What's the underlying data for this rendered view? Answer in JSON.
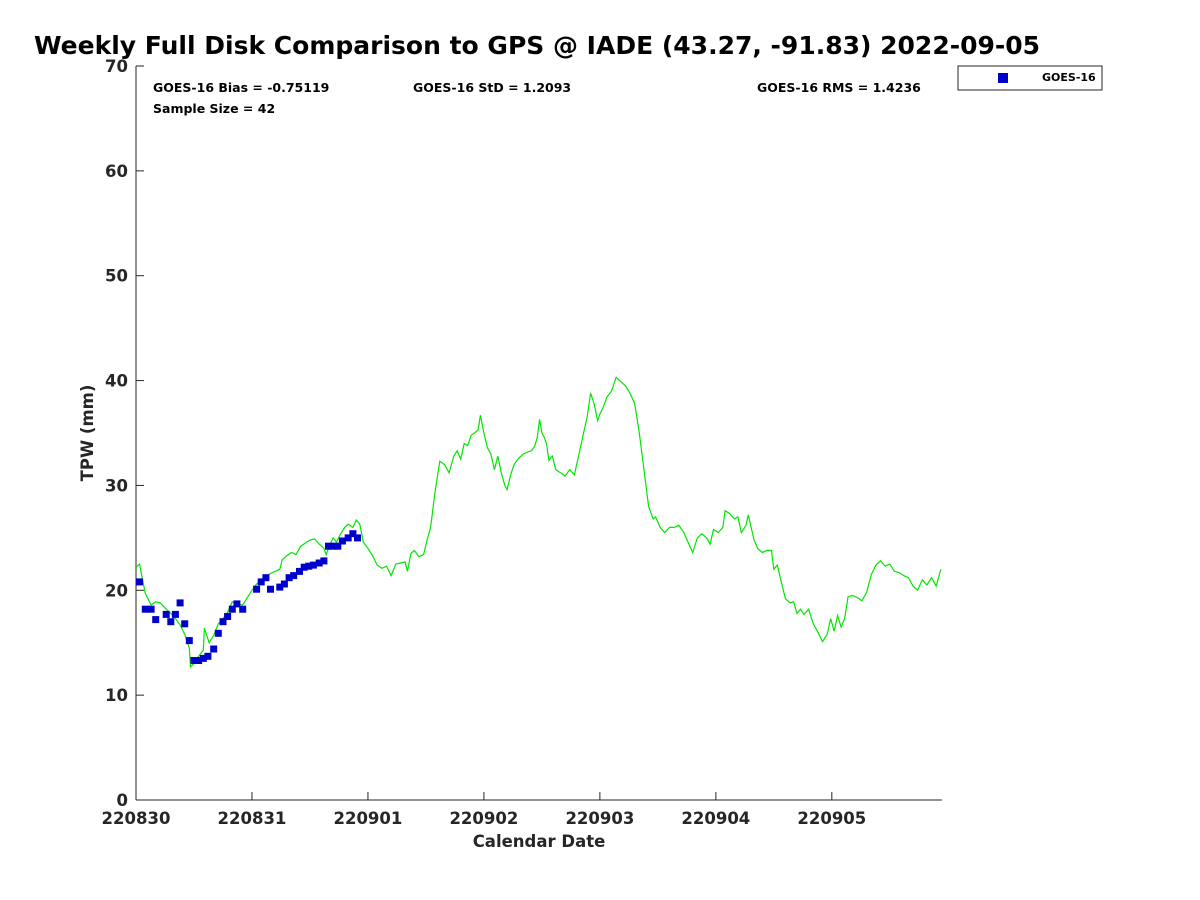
{
  "chart_data": {
    "type": "scatter",
    "title": "Weekly Full Disk Comparison to GPS @ IADE (43.27, -91.83) 2022-09-05",
    "xlabel": "Calendar Date",
    "ylabel": "TPW (mm)",
    "xlim": [
      0,
      6.95
    ],
    "ylim": [
      0,
      70
    ],
    "x_unit": "days since 220830 00Z",
    "x_ticks": [
      {
        "value": 0,
        "label": "220830"
      },
      {
        "value": 1,
        "label": "220831"
      },
      {
        "value": 2,
        "label": "220901"
      },
      {
        "value": 3,
        "label": "220902"
      },
      {
        "value": 4,
        "label": "220903"
      },
      {
        "value": 5,
        "label": "220904"
      },
      {
        "value": 6,
        "label": "220905"
      }
    ],
    "y_ticks": [
      0,
      10,
      20,
      30,
      40,
      50,
      60,
      70
    ],
    "stats": {
      "bias": "GOES-16 Bias = -0.75119",
      "std": "GOES-16 StD = 1.2093",
      "rms": "GOES-16 RMS = 1.4236",
      "sample": "Sample Size = 42"
    },
    "legend": {
      "position": "top-right-outside",
      "entries": [
        "GOES-16"
      ]
    },
    "grid": false,
    "colors": {
      "goes": "#0000cc",
      "gps": "#00e600"
    },
    "series": [
      {
        "name": "GOES-16",
        "marker": "square",
        "points": [
          [
            0.03,
            20.8
          ],
          [
            0.08,
            18.2
          ],
          [
            0.13,
            18.2
          ],
          [
            0.17,
            17.2
          ],
          [
            0.26,
            17.7
          ],
          [
            0.3,
            17.0
          ],
          [
            0.34,
            17.7
          ],
          [
            0.38,
            18.8
          ],
          [
            0.42,
            16.8
          ],
          [
            0.46,
            15.2
          ],
          [
            0.5,
            13.3
          ],
          [
            0.54,
            13.3
          ],
          [
            0.58,
            13.5
          ],
          [
            0.62,
            13.7
          ],
          [
            0.67,
            14.4
          ],
          [
            0.71,
            15.9
          ],
          [
            0.75,
            17.0
          ],
          [
            0.79,
            17.5
          ],
          [
            0.83,
            18.2
          ],
          [
            0.87,
            18.7
          ],
          [
            0.92,
            18.2
          ],
          [
            1.04,
            20.1
          ],
          [
            1.08,
            20.8
          ],
          [
            1.12,
            21.2
          ],
          [
            1.16,
            20.1
          ],
          [
            1.24,
            20.3
          ],
          [
            1.28,
            20.6
          ],
          [
            1.32,
            21.2
          ],
          [
            1.36,
            21.4
          ],
          [
            1.41,
            21.8
          ],
          [
            1.45,
            22.2
          ],
          [
            1.49,
            22.3
          ],
          [
            1.53,
            22.4
          ],
          [
            1.58,
            22.6
          ],
          [
            1.62,
            22.8
          ],
          [
            1.66,
            24.2
          ],
          [
            1.7,
            24.2
          ],
          [
            1.74,
            24.2
          ],
          [
            1.78,
            24.7
          ],
          [
            1.83,
            25.0
          ],
          [
            1.87,
            25.4
          ],
          [
            1.91,
            25.0
          ]
        ]
      },
      {
        "name": "GPS",
        "style": "line",
        "points": [
          [
            0.0,
            22.2
          ],
          [
            0.03,
            22.5
          ],
          [
            0.08,
            19.7
          ],
          [
            0.13,
            18.6
          ],
          [
            0.17,
            18.9
          ],
          [
            0.21,
            18.8
          ],
          [
            0.26,
            18.2
          ],
          [
            0.3,
            17.8
          ],
          [
            0.34,
            17.3
          ],
          [
            0.38,
            16.7
          ],
          [
            0.42,
            15.8
          ],
          [
            0.46,
            14.5
          ],
          [
            0.47,
            12.7
          ],
          [
            0.5,
            13.0
          ],
          [
            0.54,
            13.7
          ],
          [
            0.58,
            14.3
          ],
          [
            0.59,
            16.4
          ],
          [
            0.63,
            15.0
          ],
          [
            0.67,
            15.7
          ],
          [
            0.71,
            16.8
          ],
          [
            0.75,
            17.3
          ],
          [
            0.79,
            17.9
          ],
          [
            0.83,
            18.9
          ],
          [
            0.87,
            18.7
          ],
          [
            0.92,
            18.6
          ],
          [
            0.96,
            19.3
          ],
          [
            1.0,
            20.0
          ],
          [
            1.04,
            20.6
          ],
          [
            1.08,
            20.9
          ],
          [
            1.12,
            21.3
          ],
          [
            1.16,
            21.6
          ],
          [
            1.2,
            21.8
          ],
          [
            1.24,
            22.0
          ],
          [
            1.26,
            22.9
          ],
          [
            1.3,
            23.3
          ],
          [
            1.34,
            23.6
          ],
          [
            1.38,
            23.4
          ],
          [
            1.42,
            24.2
          ],
          [
            1.46,
            24.5
          ],
          [
            1.5,
            24.8
          ],
          [
            1.54,
            24.9
          ],
          [
            1.58,
            24.4
          ],
          [
            1.62,
            24.0
          ],
          [
            1.64,
            23.4
          ],
          [
            1.67,
            24.3
          ],
          [
            1.7,
            25.0
          ],
          [
            1.73,
            24.6
          ],
          [
            1.76,
            25.3
          ],
          [
            1.8,
            26.0
          ],
          [
            1.83,
            26.3
          ],
          [
            1.87,
            26.0
          ],
          [
            1.9,
            26.7
          ],
          [
            1.93,
            26.3
          ],
          [
            1.96,
            24.6
          ],
          [
            2.0,
            24.0
          ],
          [
            2.04,
            23.3
          ],
          [
            2.08,
            22.4
          ],
          [
            2.12,
            22.1
          ],
          [
            2.16,
            22.3
          ],
          [
            2.2,
            21.4
          ],
          [
            2.24,
            22.5
          ],
          [
            2.28,
            22.6
          ],
          [
            2.32,
            22.7
          ],
          [
            2.34,
            21.8
          ],
          [
            2.37,
            23.5
          ],
          [
            2.4,
            23.8
          ],
          [
            2.44,
            23.2
          ],
          [
            2.48,
            23.4
          ],
          [
            2.51,
            24.8
          ],
          [
            2.54,
            26.0
          ],
          [
            2.58,
            29.5
          ],
          [
            2.62,
            32.3
          ],
          [
            2.66,
            32.0
          ],
          [
            2.7,
            31.2
          ],
          [
            2.74,
            32.8
          ],
          [
            2.77,
            33.3
          ],
          [
            2.8,
            32.5
          ],
          [
            2.83,
            34.0
          ],
          [
            2.86,
            33.8
          ],
          [
            2.89,
            34.8
          ],
          [
            2.92,
            35.0
          ],
          [
            2.95,
            35.3
          ],
          [
            2.97,
            36.7
          ],
          [
            3.0,
            35.0
          ],
          [
            3.03,
            33.6
          ],
          [
            3.06,
            33.0
          ],
          [
            3.09,
            31.5
          ],
          [
            3.12,
            32.8
          ],
          [
            3.15,
            31.2
          ],
          [
            3.18,
            30.0
          ],
          [
            3.2,
            29.6
          ],
          [
            3.23,
            31.0
          ],
          [
            3.26,
            32.0
          ],
          [
            3.3,
            32.6
          ],
          [
            3.34,
            33.0
          ],
          [
            3.38,
            33.2
          ],
          [
            3.41,
            33.3
          ],
          [
            3.44,
            33.8
          ],
          [
            3.46,
            34.6
          ],
          [
            3.48,
            36.3
          ],
          [
            3.5,
            35.0
          ],
          [
            3.52,
            34.6
          ],
          [
            3.54,
            34.0
          ],
          [
            3.56,
            32.4
          ],
          [
            3.59,
            32.8
          ],
          [
            3.62,
            31.5
          ],
          [
            3.66,
            31.2
          ],
          [
            3.7,
            30.9
          ],
          [
            3.74,
            31.5
          ],
          [
            3.78,
            31.0
          ],
          [
            3.82,
            33.0
          ],
          [
            3.86,
            35.0
          ],
          [
            3.89,
            36.5
          ],
          [
            3.92,
            38.8
          ],
          [
            3.95,
            37.8
          ],
          [
            3.98,
            36.2
          ],
          [
            4.0,
            36.8
          ],
          [
            4.03,
            37.5
          ],
          [
            4.06,
            38.4
          ],
          [
            4.1,
            39.0
          ],
          [
            4.14,
            40.3
          ],
          [
            4.18,
            39.9
          ],
          [
            4.22,
            39.5
          ],
          [
            4.26,
            38.8
          ],
          [
            4.3,
            37.8
          ],
          [
            4.34,
            35.0
          ],
          [
            4.38,
            31.5
          ],
          [
            4.42,
            28.0
          ],
          [
            4.46,
            26.8
          ],
          [
            4.48,
            27.0
          ],
          [
            4.52,
            26.0
          ],
          [
            4.56,
            25.5
          ],
          [
            4.6,
            26.0
          ],
          [
            4.64,
            26.0
          ],
          [
            4.68,
            26.2
          ],
          [
            4.72,
            25.6
          ],
          [
            4.76,
            24.6
          ],
          [
            4.8,
            23.6
          ],
          [
            4.84,
            25.0
          ],
          [
            4.88,
            25.4
          ],
          [
            4.92,
            25.0
          ],
          [
            4.95,
            24.4
          ],
          [
            4.98,
            25.8
          ],
          [
            5.02,
            25.5
          ],
          [
            5.06,
            26.0
          ],
          [
            5.08,
            27.6
          ],
          [
            5.12,
            27.3
          ],
          [
            5.16,
            26.8
          ],
          [
            5.19,
            27.0
          ],
          [
            5.22,
            25.5
          ],
          [
            5.26,
            26.2
          ],
          [
            5.28,
            27.2
          ],
          [
            5.3,
            26.2
          ],
          [
            5.33,
            24.8
          ],
          [
            5.36,
            24.0
          ],
          [
            5.4,
            23.6
          ],
          [
            5.44,
            23.8
          ],
          [
            5.48,
            23.8
          ],
          [
            5.5,
            22.0
          ],
          [
            5.53,
            22.4
          ],
          [
            5.56,
            21.0
          ],
          [
            5.6,
            19.2
          ],
          [
            5.64,
            18.8
          ],
          [
            5.67,
            18.9
          ],
          [
            5.7,
            17.8
          ],
          [
            5.73,
            18.2
          ],
          [
            5.76,
            17.7
          ],
          [
            5.8,
            18.2
          ],
          [
            5.84,
            16.8
          ],
          [
            5.88,
            16.0
          ],
          [
            5.92,
            15.1
          ],
          [
            5.96,
            15.8
          ],
          [
            5.99,
            17.3
          ],
          [
            6.02,
            16.1
          ],
          [
            6.05,
            17.6
          ],
          [
            6.08,
            16.5
          ],
          [
            6.11,
            17.3
          ],
          [
            6.14,
            19.4
          ],
          [
            6.18,
            19.5
          ],
          [
            6.22,
            19.3
          ],
          [
            6.26,
            19.0
          ],
          [
            6.3,
            19.8
          ],
          [
            6.34,
            21.5
          ],
          [
            6.38,
            22.4
          ],
          [
            6.42,
            22.8
          ],
          [
            6.46,
            22.3
          ],
          [
            6.5,
            22.5
          ],
          [
            6.54,
            21.8
          ],
          [
            6.58,
            21.7
          ],
          [
            6.62,
            21.4
          ],
          [
            6.66,
            21.2
          ],
          [
            6.7,
            20.4
          ],
          [
            6.74,
            20.0
          ],
          [
            6.78,
            21.0
          ],
          [
            6.82,
            20.5
          ],
          [
            6.86,
            21.2
          ],
          [
            6.9,
            20.4
          ],
          [
            6.94,
            22.0
          ]
        ]
      }
    ]
  }
}
